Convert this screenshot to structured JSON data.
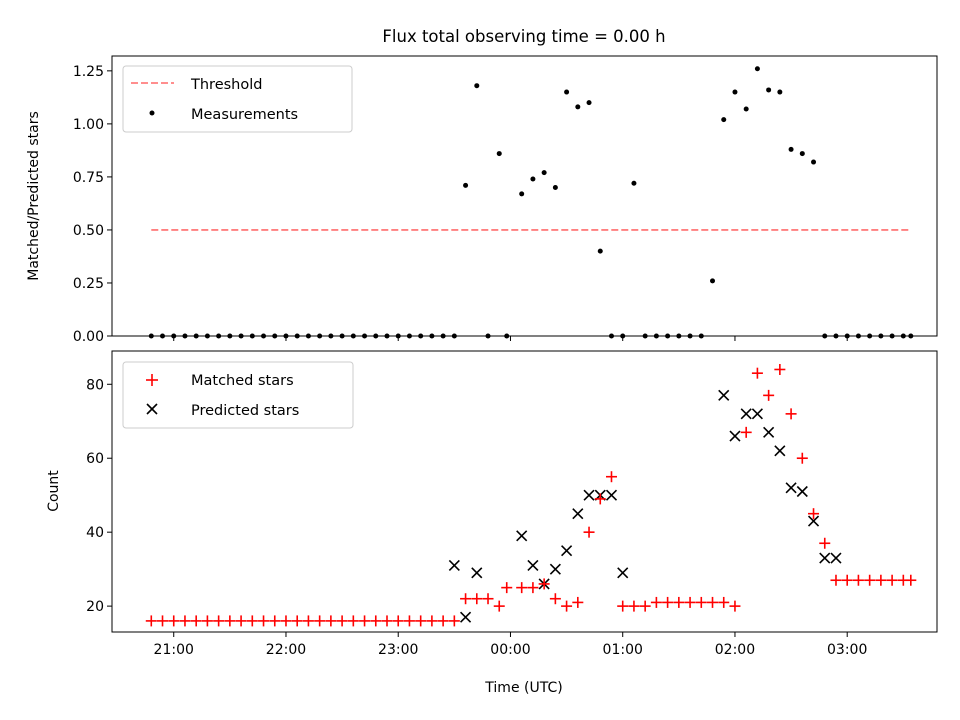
{
  "figure": {
    "title": "Flux total observing time = 0.00 h"
  },
  "chart_data": [
    {
      "type": "scatter",
      "panel": "top",
      "ylabel": "Matched/Predicted stars",
      "xlabel": "",
      "ylim": [
        0,
        1.32
      ],
      "xlim_hours": [
        -3.55,
        3.8
      ],
      "yticks": [
        0,
        0.25,
        0.5,
        0.75,
        1.0,
        1.25
      ],
      "ytick_labels": [
        "0.00",
        "0.25",
        "0.50",
        "0.75",
        "1.00",
        "1.25"
      ],
      "grid": false,
      "legend_position": "top-left",
      "series": [
        {
          "name": "Threshold",
          "style": "dashed-line",
          "color": "#ff7f7f",
          "x": [
            "20:48",
            "03:34"
          ],
          "y": [
            0.5,
            0.5
          ]
        },
        {
          "name": "Measurements",
          "style": "dot",
          "color": "#000000",
          "x": [
            "20:48",
            "20:54",
            "21:00",
            "21:06",
            "21:12",
            "21:18",
            "21:24",
            "21:30",
            "21:36",
            "21:42",
            "21:48",
            "21:54",
            "22:00",
            "22:06",
            "22:12",
            "22:18",
            "22:24",
            "22:30",
            "22:36",
            "22:42",
            "22:48",
            "22:54",
            "23:00",
            "23:06",
            "23:12",
            "23:18",
            "23:24",
            "23:30",
            "23:36",
            "23:42",
            "23:48",
            "23:54",
            "23:58",
            "00:06",
            "00:12",
            "00:18",
            "00:24",
            "00:30",
            "00:36",
            "00:42",
            "00:48",
            "00:54",
            "01:00",
            "01:06",
            "01:12",
            "01:18",
            "01:24",
            "01:30",
            "01:36",
            "01:42",
            "01:48",
            "01:54",
            "02:00",
            "02:06",
            "02:12",
            "02:18",
            "02:24",
            "02:30",
            "02:36",
            "02:42",
            "02:48",
            "02:54",
            "03:00",
            "03:06",
            "03:12",
            "03:18",
            "03:24",
            "03:30",
            "03:34"
          ],
          "y": [
            0,
            0,
            0,
            0,
            0,
            0,
            0,
            0,
            0,
            0,
            0,
            0,
            0,
            0,
            0,
            0,
            0,
            0,
            0,
            0,
            0,
            0,
            0,
            0,
            0,
            0,
            0,
            0,
            0.71,
            1.18,
            0,
            0.86,
            0,
            0.67,
            0.74,
            0.77,
            0.7,
            1.15,
            1.08,
            1.1,
            0.4,
            0,
            0,
            0.72,
            0,
            0,
            0,
            0,
            0,
            0,
            0.26,
            1.02,
            1.15,
            1.07,
            1.26,
            1.16,
            1.15,
            0.88,
            0.86,
            0.82,
            0,
            0,
            0,
            0,
            0,
            0,
            0,
            0,
            0
          ]
        }
      ]
    },
    {
      "type": "scatter",
      "panel": "bottom",
      "xlabel": "Time (UTC)",
      "ylabel": "Count",
      "ylim": [
        13,
        89
      ],
      "xlim_hours": [
        -3.55,
        3.8
      ],
      "xticks_hours": [
        -3,
        -2,
        -1,
        0,
        1,
        2,
        3
      ],
      "xtick_labels": [
        "21:00",
        "22:00",
        "23:00",
        "00:00",
        "01:00",
        "02:00",
        "03:00"
      ],
      "yticks": [
        20,
        40,
        60,
        80
      ],
      "ytick_labels": [
        "20",
        "40",
        "60",
        "80"
      ],
      "grid": false,
      "legend_position": "top-left",
      "series": [
        {
          "name": "Matched stars",
          "marker": "plus",
          "color": "#ff0000",
          "x": [
            "20:48",
            "20:54",
            "21:00",
            "21:06",
            "21:12",
            "21:18",
            "21:24",
            "21:30",
            "21:36",
            "21:42",
            "21:48",
            "21:54",
            "22:00",
            "22:06",
            "22:12",
            "22:18",
            "22:24",
            "22:30",
            "22:36",
            "22:42",
            "22:48",
            "22:54",
            "23:00",
            "23:06",
            "23:12",
            "23:18",
            "23:24",
            "23:30",
            "23:36",
            "23:42",
            "23:48",
            "23:54",
            "23:58",
            "00:06",
            "00:12",
            "00:18",
            "00:24",
            "00:30",
            "00:36",
            "00:42",
            "00:48",
            "00:54",
            "01:00",
            "01:06",
            "01:12",
            "01:18",
            "01:24",
            "01:30",
            "01:36",
            "01:42",
            "01:48",
            "01:54",
            "02:00",
            "02:06",
            "02:12",
            "02:18",
            "02:24",
            "02:30",
            "02:36",
            "02:42",
            "02:48",
            "02:54",
            "03:00",
            "03:06",
            "03:12",
            "03:18",
            "03:24",
            "03:30",
            "03:34"
          ],
          "y": [
            16,
            16,
            16,
            16,
            16,
            16,
            16,
            16,
            16,
            16,
            16,
            16,
            16,
            16,
            16,
            16,
            16,
            16,
            16,
            16,
            16,
            16,
            16,
            16,
            16,
            16,
            16,
            16,
            22,
            22,
            22,
            20,
            25,
            25,
            25,
            26,
            22,
            20,
            21,
            40,
            49,
            55,
            20,
            20,
            20,
            21,
            21,
            21,
            21,
            21,
            21,
            21,
            20,
            67,
            83,
            77,
            84,
            72,
            60,
            45,
            37,
            27,
            27,
            27,
            27,
            27,
            27,
            27,
            27
          ]
        },
        {
          "name": "Predicted stars",
          "marker": "x",
          "color": "#000000",
          "x": [
            "23:30",
            "23:36",
            "23:42",
            "00:06",
            "00:12",
            "00:18",
            "00:24",
            "00:30",
            "00:36",
            "00:42",
            "00:48",
            "00:54",
            "01:00",
            "01:54",
            "02:00",
            "02:06",
            "02:12",
            "02:18",
            "02:24",
            "02:30",
            "02:36",
            "02:42",
            "02:48",
            "02:54"
          ],
          "y": [
            31,
            17,
            29,
            39,
            31,
            26,
            30,
            35,
            45,
            50,
            50,
            50,
            29,
            77,
            66,
            72,
            72,
            67,
            62,
            52,
            51,
            43,
            33,
            33
          ]
        }
      ]
    }
  ]
}
